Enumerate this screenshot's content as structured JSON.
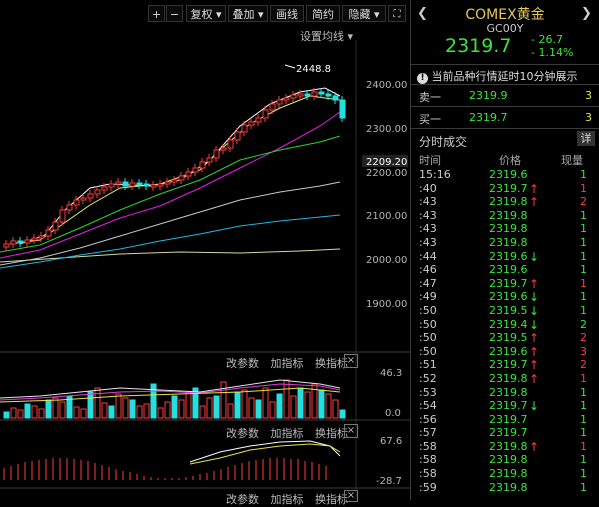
{
  "toolbar": {
    "plus": "+",
    "minus": "−",
    "restore_rights": "复权",
    "overlay": "叠加",
    "draw_line": "画线",
    "summary": "简约",
    "hide": "隐藏",
    "setting_ma": "设置均线"
  },
  "price_axis": [
    "2400.00",
    "2300.00",
    "2200.00",
    "2100.00",
    "2000.00",
    "1900.00"
  ],
  "current_price_tag": "2209.20",
  "high_label": "2448.8",
  "volume_panel": {
    "change_param": "改参数",
    "add_indicator": "加指标",
    "switch_indicator": "换指标",
    "close": "×",
    "max": "46.3",
    "zero": "0.0"
  },
  "macd_panel": {
    "change_param": "改参数",
    "add_indicator": "加指标",
    "switch_indicator": "换指标",
    "close": "×",
    "max": "67.6",
    "min": "-28.7"
  },
  "bottom_panel": {
    "change_param": "改参数",
    "add_indicator": "加指标",
    "switch_indicator": "换指标",
    "close": "×"
  },
  "quote": {
    "name": "COMEX黄金",
    "code": "GC00Y",
    "price": "2319.7",
    "change": "- 26.7",
    "change_pct": "- 1.14%",
    "notice": "当前品种行情延时10分钟展示",
    "ask_label": "卖一",
    "ask_price": "2319.9",
    "ask_vol": "3",
    "bid_label": "买一",
    "bid_price": "2319.7",
    "bid_vol": "3",
    "trades_title": "分时成交",
    "detail": "详",
    "col_time": "时间",
    "col_price": "价格",
    "col_vol": "现量"
  },
  "colors": {
    "up": "#ff3b3b",
    "down": "#39e639"
  },
  "trades": [
    {
      "t": "15:16",
      "p": "2319.6",
      "a": "",
      "v": "1",
      "c": "green"
    },
    {
      "t": ":40",
      "p": "2319.7",
      "a": "↑",
      "v": "1",
      "c": "red"
    },
    {
      "t": ":43",
      "p": "2319.8",
      "a": "↑",
      "v": "2",
      "c": "red"
    },
    {
      "t": ":43",
      "p": "2319.8",
      "a": "",
      "v": "1",
      "c": "green"
    },
    {
      "t": ":43",
      "p": "2319.8",
      "a": "",
      "v": "1",
      "c": "green"
    },
    {
      "t": ":43",
      "p": "2319.8",
      "a": "",
      "v": "1",
      "c": "green"
    },
    {
      "t": ":44",
      "p": "2319.6",
      "a": "↓",
      "v": "1",
      "c": "green"
    },
    {
      "t": ":46",
      "p": "2319.6",
      "a": "",
      "v": "1",
      "c": "green"
    },
    {
      "t": ":47",
      "p": "2319.7",
      "a": "↑",
      "v": "1",
      "c": "red"
    },
    {
      "t": ":49",
      "p": "2319.6",
      "a": "↓",
      "v": "1",
      "c": "green"
    },
    {
      "t": ":50",
      "p": "2319.5",
      "a": "↓",
      "v": "1",
      "c": "green"
    },
    {
      "t": ":50",
      "p": "2319.4",
      "a": "↓",
      "v": "2",
      "c": "green"
    },
    {
      "t": ":50",
      "p": "2319.5",
      "a": "↑",
      "v": "2",
      "c": "red"
    },
    {
      "t": ":50",
      "p": "2319.6",
      "a": "↑",
      "v": "3",
      "c": "red"
    },
    {
      "t": ":51",
      "p": "2319.7",
      "a": "↑",
      "v": "2",
      "c": "red"
    },
    {
      "t": ":52",
      "p": "2319.8",
      "a": "↑",
      "v": "1",
      "c": "red"
    },
    {
      "t": ":53",
      "p": "2319.8",
      "a": "",
      "v": "1",
      "c": "green"
    },
    {
      "t": ":54",
      "p": "2319.7",
      "a": "↓",
      "v": "1",
      "c": "green"
    },
    {
      "t": ":56",
      "p": "2319.7",
      "a": "",
      "v": "1",
      "c": "green"
    },
    {
      "t": ":57",
      "p": "2319.7",
      "a": "",
      "v": "1",
      "c": "green"
    },
    {
      "t": ":58",
      "p": "2319.8",
      "a": "↑",
      "v": "1",
      "c": "red"
    },
    {
      "t": ":58",
      "p": "2319.8",
      "a": "",
      "v": "1",
      "c": "green"
    },
    {
      "t": ":58",
      "p": "2319.8",
      "a": "",
      "v": "1",
      "c": "green"
    },
    {
      "t": ":59",
      "p": "2319.8",
      "a": "",
      "v": "1",
      "c": "green"
    }
  ]
}
